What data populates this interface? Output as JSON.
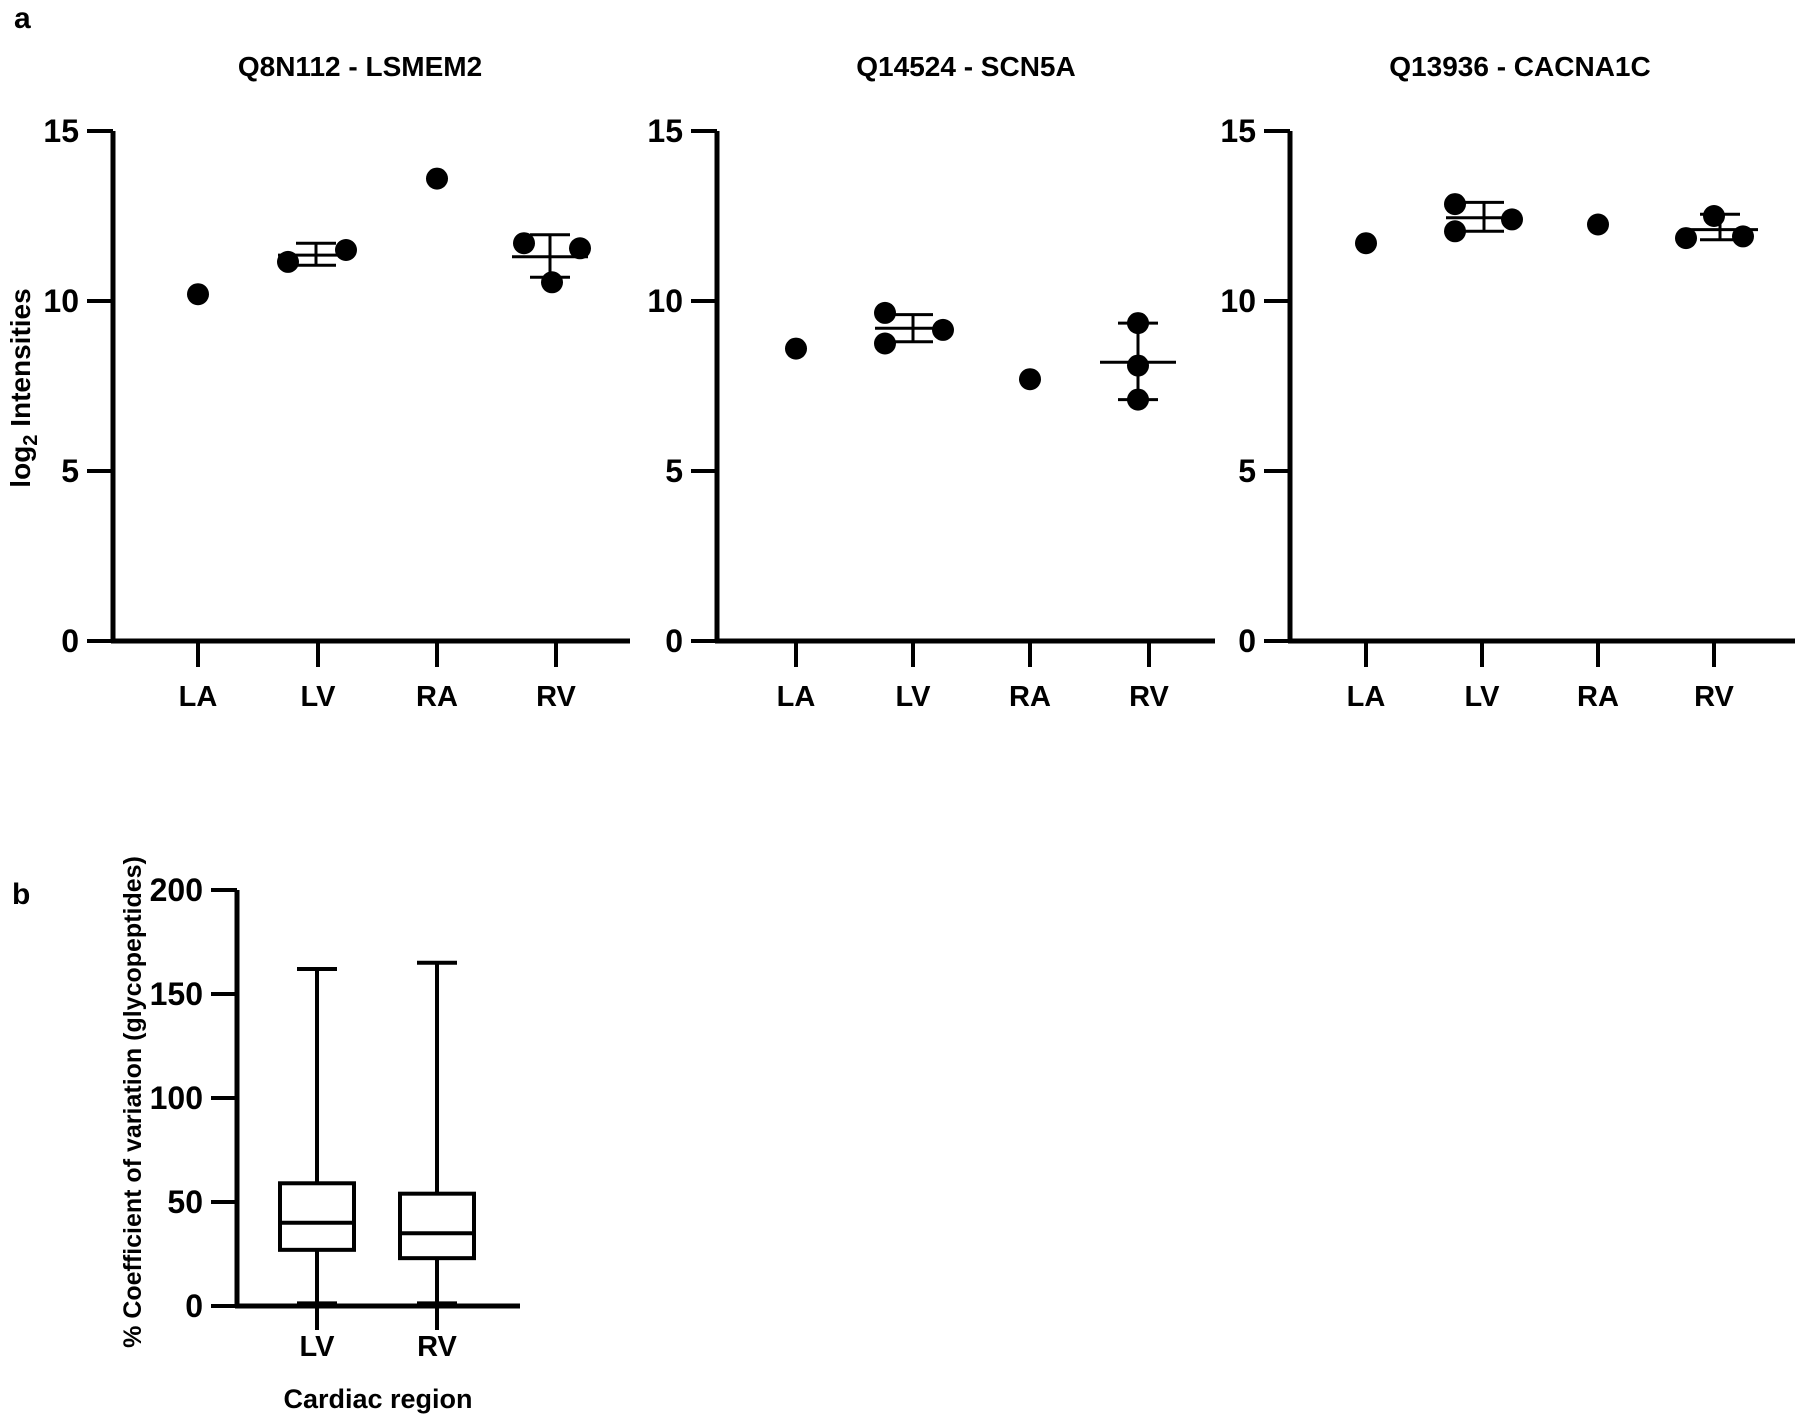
{
  "figure": {
    "panel_a_label": "a",
    "panel_b_label": "b",
    "background": "#ffffff",
    "foreground": "#000000"
  },
  "chart_data": [
    {
      "type": "scatter",
      "panel": "a",
      "title": "Q8N112 - LSMEM2",
      "ylabel": "log2 Intensities",
      "ylabel_parts": {
        "pre": "log",
        "sub": "2",
        "post": " Intensities"
      },
      "xlabel": "",
      "ylim": [
        0,
        15
      ],
      "yticks": [
        0,
        5,
        10,
        15
      ],
      "categories": [
        "LA",
        "LV",
        "RA",
        "RV"
      ],
      "grid": false,
      "marker_color": "#000000",
      "groups": [
        {
          "category": "LA",
          "points": [
            10.2
          ],
          "dx": [
            0
          ],
          "mean": null,
          "err_top": null,
          "err_bot": null,
          "err_dx": 0
        },
        {
          "category": "LV",
          "points": [
            11.15,
            11.5
          ],
          "dx": [
            -30,
            28
          ],
          "mean": 11.35,
          "err_top": 11.7,
          "err_bot": 11.05,
          "err_dx": -2
        },
        {
          "category": "RA",
          "points": [
            13.6
          ],
          "dx": [
            0
          ],
          "mean": null,
          "err_top": null,
          "err_bot": null,
          "err_dx": 0
        },
        {
          "category": "RV",
          "points": [
            11.7,
            11.55,
            10.55
          ],
          "dx": [
            -32,
            24,
            -4
          ],
          "mean": 11.3,
          "err_top": 11.95,
          "err_bot": 10.7,
          "err_dx": -6
        }
      ]
    },
    {
      "type": "scatter",
      "panel": "a",
      "title": "Q14524 - SCN5A",
      "ylabel": "",
      "ylabel_parts": null,
      "xlabel": "",
      "ylim": [
        0,
        15
      ],
      "yticks": [
        0,
        5,
        10,
        15
      ],
      "categories": [
        "LA",
        "LV",
        "RA",
        "RV"
      ],
      "grid": false,
      "marker_color": "#000000",
      "groups": [
        {
          "category": "LA",
          "points": [
            8.6
          ],
          "dx": [
            0
          ],
          "mean": null,
          "err_top": null,
          "err_bot": null,
          "err_dx": 0
        },
        {
          "category": "LV",
          "points": [
            9.65,
            8.75,
            9.15
          ],
          "dx": [
            -28,
            -28,
            30
          ],
          "mean": 9.2,
          "err_top": 9.6,
          "err_bot": 8.8,
          "err_dx": 0
        },
        {
          "category": "RA",
          "points": [
            7.7
          ],
          "dx": [
            0
          ],
          "mean": null,
          "err_top": null,
          "err_bot": null,
          "err_dx": 0
        },
        {
          "category": "RV",
          "points": [
            9.35,
            8.1,
            7.1
          ],
          "dx": [
            -11,
            -11,
            -11
          ],
          "mean": 8.2,
          "err_top": 9.35,
          "err_bot": 7.1,
          "err_dx": -11
        }
      ]
    },
    {
      "type": "scatter",
      "panel": "a",
      "title": "Q13936 - CACNA1C",
      "ylabel": "",
      "ylabel_parts": null,
      "xlabel": "",
      "ylim": [
        0,
        15
      ],
      "yticks": [
        0,
        5,
        10,
        15
      ],
      "categories": [
        "LA",
        "LV",
        "RA",
        "RV"
      ],
      "grid": false,
      "marker_color": "#000000",
      "groups": [
        {
          "category": "LA",
          "points": [
            11.7
          ],
          "dx": [
            0
          ],
          "mean": null,
          "err_top": null,
          "err_bot": null,
          "err_dx": 0
        },
        {
          "category": "LV",
          "points": [
            12.85,
            12.05,
            12.4
          ],
          "dx": [
            -27,
            -27,
            30
          ],
          "mean": 12.45,
          "err_top": 12.9,
          "err_bot": 12.05,
          "err_dx": 2
        },
        {
          "category": "RA",
          "points": [
            12.25
          ],
          "dx": [
            0
          ],
          "mean": null,
          "err_top": null,
          "err_bot": null,
          "err_dx": 0
        },
        {
          "category": "RV",
          "points": [
            12.5,
            11.85,
            11.9
          ],
          "dx": [
            0,
            -28,
            29
          ],
          "mean": 12.1,
          "err_top": 12.55,
          "err_bot": 11.8,
          "err_dx": 6
        }
      ]
    },
    {
      "type": "box",
      "panel": "b",
      "title": "",
      "ylabel": "% Coefficient of variation (glycopeptides)",
      "xlabel": "Cardiac region",
      "ylim": [
        0,
        200
      ],
      "yticks": [
        0,
        50,
        100,
        150,
        200
      ],
      "categories": [
        "LV",
        "RV"
      ],
      "grid": false,
      "box_color": "#000000",
      "boxes": [
        {
          "category": "LV",
          "whisker_low": 1,
          "q1": 27,
          "median": 40,
          "q3": 59,
          "whisker_high": 162
        },
        {
          "category": "RV",
          "whisker_low": 1,
          "q1": 23,
          "median": 35,
          "q3": 54,
          "whisker_high": 165
        }
      ]
    }
  ]
}
